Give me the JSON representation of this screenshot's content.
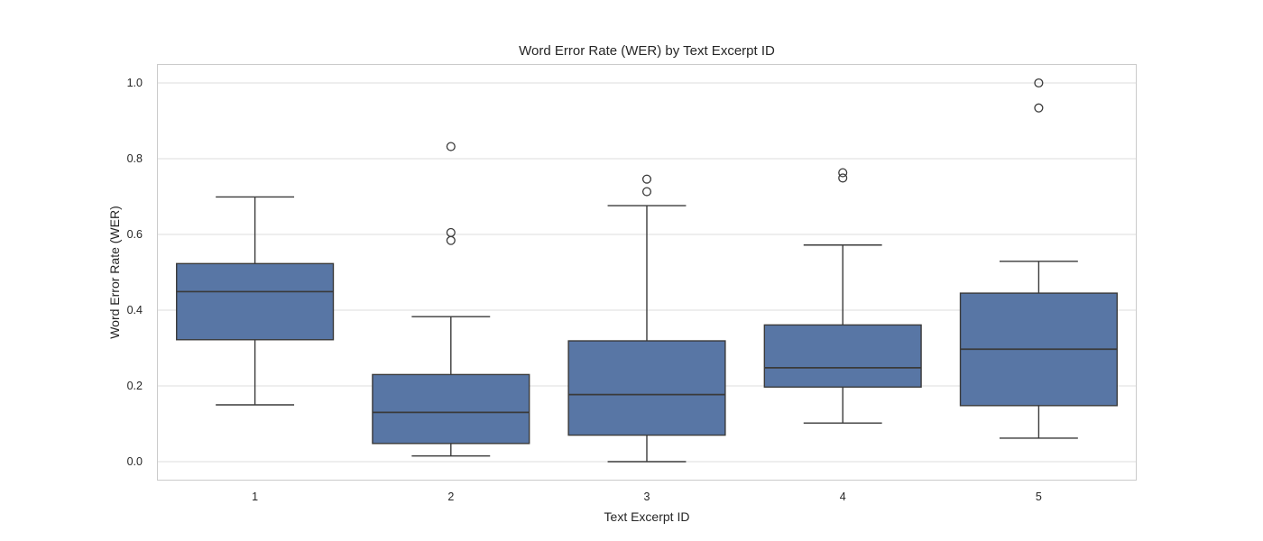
{
  "chart_data": {
    "type": "boxplot",
    "title": "Word Error Rate (WER) by Text Excerpt ID",
    "xlabel": "Text Excerpt ID",
    "ylabel": "Word Error Rate (WER)",
    "categories": [
      "1",
      "2",
      "3",
      "4",
      "5"
    ],
    "yticks": [
      0.0,
      0.2,
      0.4,
      0.6,
      0.8,
      1.0
    ],
    "ytick_labels": [
      "0.0",
      "0.2",
      "0.4",
      "0.6",
      "0.8",
      "1.0"
    ],
    "ylim": [
      -0.05,
      1.05
    ],
    "grid": true,
    "legend": "none",
    "boxes": [
      {
        "category": "1",
        "whisker_low": 0.15,
        "q1": 0.322,
        "median": 0.449,
        "q3": 0.523,
        "whisker_high": 0.699,
        "outliers": []
      },
      {
        "category": "2",
        "whisker_low": 0.015,
        "q1": 0.048,
        "median": 0.13,
        "q3": 0.23,
        "whisker_high": 0.383,
        "outliers": [
          0.584,
          0.605,
          0.832
        ]
      },
      {
        "category": "3",
        "whisker_low": 0.0,
        "q1": 0.07,
        "median": 0.177,
        "q3": 0.319,
        "whisker_high": 0.676,
        "outliers": [
          0.713,
          0.746
        ]
      },
      {
        "category": "4",
        "whisker_low": 0.102,
        "q1": 0.197,
        "median": 0.248,
        "q3": 0.361,
        "whisker_high": 0.572,
        "outliers": [
          0.749,
          0.763
        ]
      },
      {
        "category": "5",
        "whisker_low": 0.062,
        "q1": 0.148,
        "median": 0.297,
        "q3": 0.445,
        "whisker_high": 0.529,
        "outliers": [
          0.934,
          1.0
        ]
      }
    ],
    "colors": {
      "box_fill": "#5876A5",
      "box_edge": "#3A3A3A",
      "median": "#3A3A3A",
      "whisker": "#3A3A3A",
      "outlier_stroke": "#3A3A3A",
      "grid": "#DDDDDD",
      "axes_border": "#CBCBCB",
      "text": "#262626",
      "background": "#FFFFFF"
    }
  }
}
